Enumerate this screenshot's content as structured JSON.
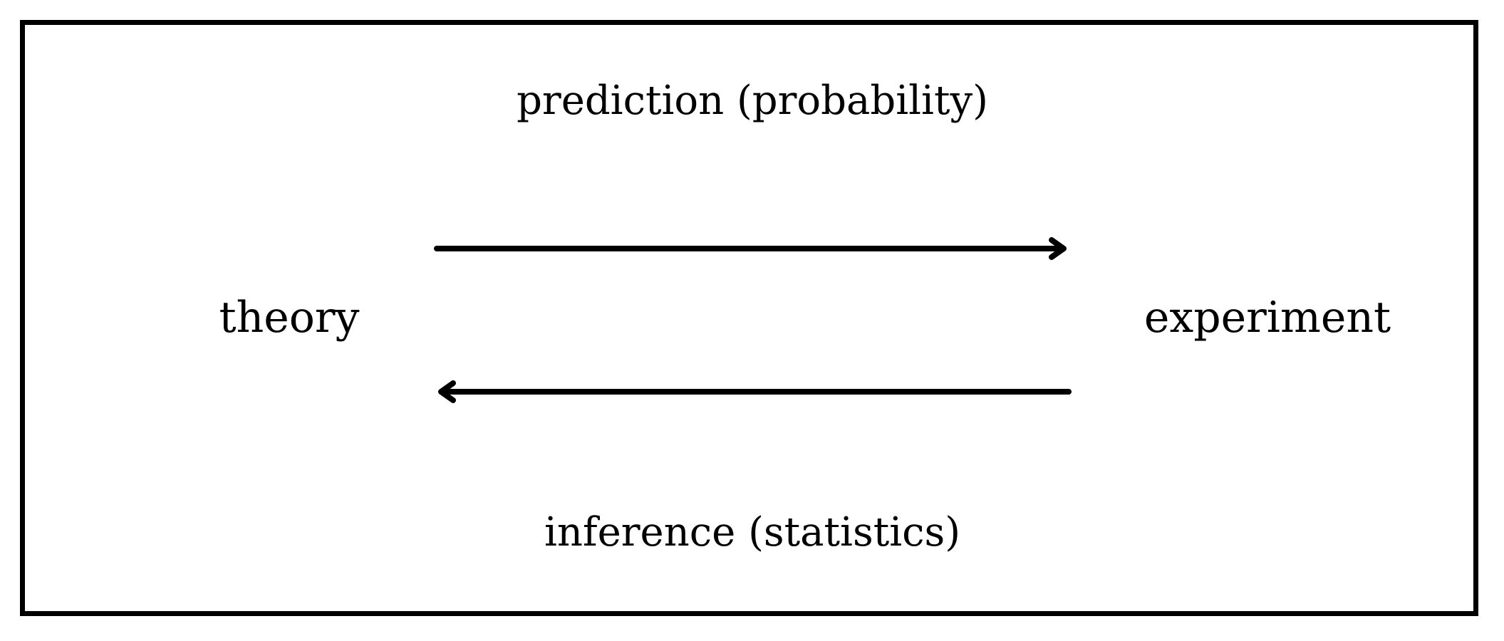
{
  "diagram": {
    "top_label": "prediction (probability)",
    "bottom_label": "inference (statistics)",
    "left_node": "theory",
    "right_node": "experiment"
  },
  "edges": [
    {
      "from": "theory",
      "to": "experiment",
      "label": "prediction (probability)"
    },
    {
      "from": "experiment",
      "to": "theory",
      "label": "inference (statistics)"
    }
  ],
  "colors": {
    "stroke": "#000000",
    "background": "#ffffff"
  }
}
